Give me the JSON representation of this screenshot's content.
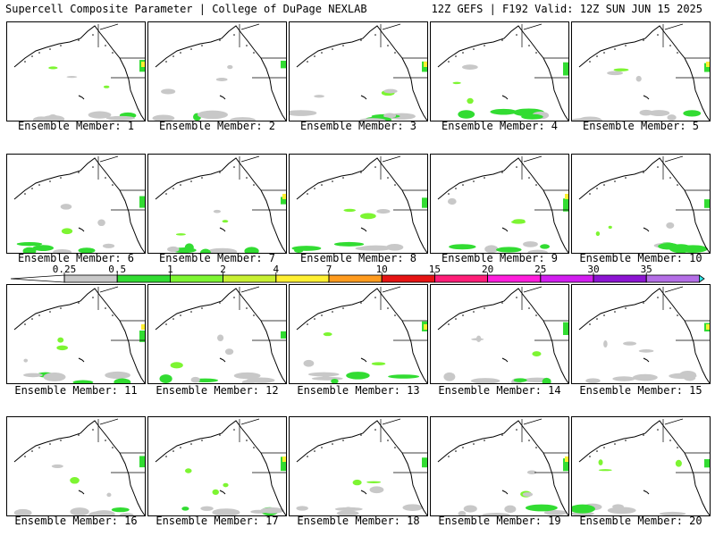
{
  "header": {
    "left": "Supercell Composite Parameter | College of DuPage NEXLAB",
    "right": "12Z GEFS | F192 Valid: 12Z SUN JUN 15 2025"
  },
  "members": [
    "Ensemble Member: 1",
    "Ensemble Member: 2",
    "Ensemble Member: 3",
    "Ensemble Member: 4",
    "Ensemble Member: 5",
    "Ensemble Member: 6",
    "Ensemble Member: 7",
    "Ensemble Member: 8",
    "Ensemble Member: 9",
    "Ensemble Member: 10",
    "Ensemble Member: 11",
    "Ensemble Member: 12",
    "Ensemble Member: 13",
    "Ensemble Member: 14",
    "Ensemble Member: 15",
    "Ensemble Member: 16",
    "Ensemble Member: 17",
    "Ensemble Member: 18",
    "Ensemble Member: 19",
    "Ensemble Member: 20"
  ],
  "colorbar": {
    "ticks": [
      "0.25",
      "0.5",
      "1",
      "2",
      "4",
      "7",
      "10",
      "15",
      "20",
      "25",
      "30",
      "35"
    ],
    "colors": [
      "#c8c8c8",
      "#32dc32",
      "#7df532",
      "#c8f032",
      "#fff032",
      "#ff9b1e",
      "#e61414",
      "#ff1e78",
      "#ff1edc",
      "#d21ef0",
      "#8c14d2",
      "#b46ee6",
      "#32e6e6"
    ]
  }
}
